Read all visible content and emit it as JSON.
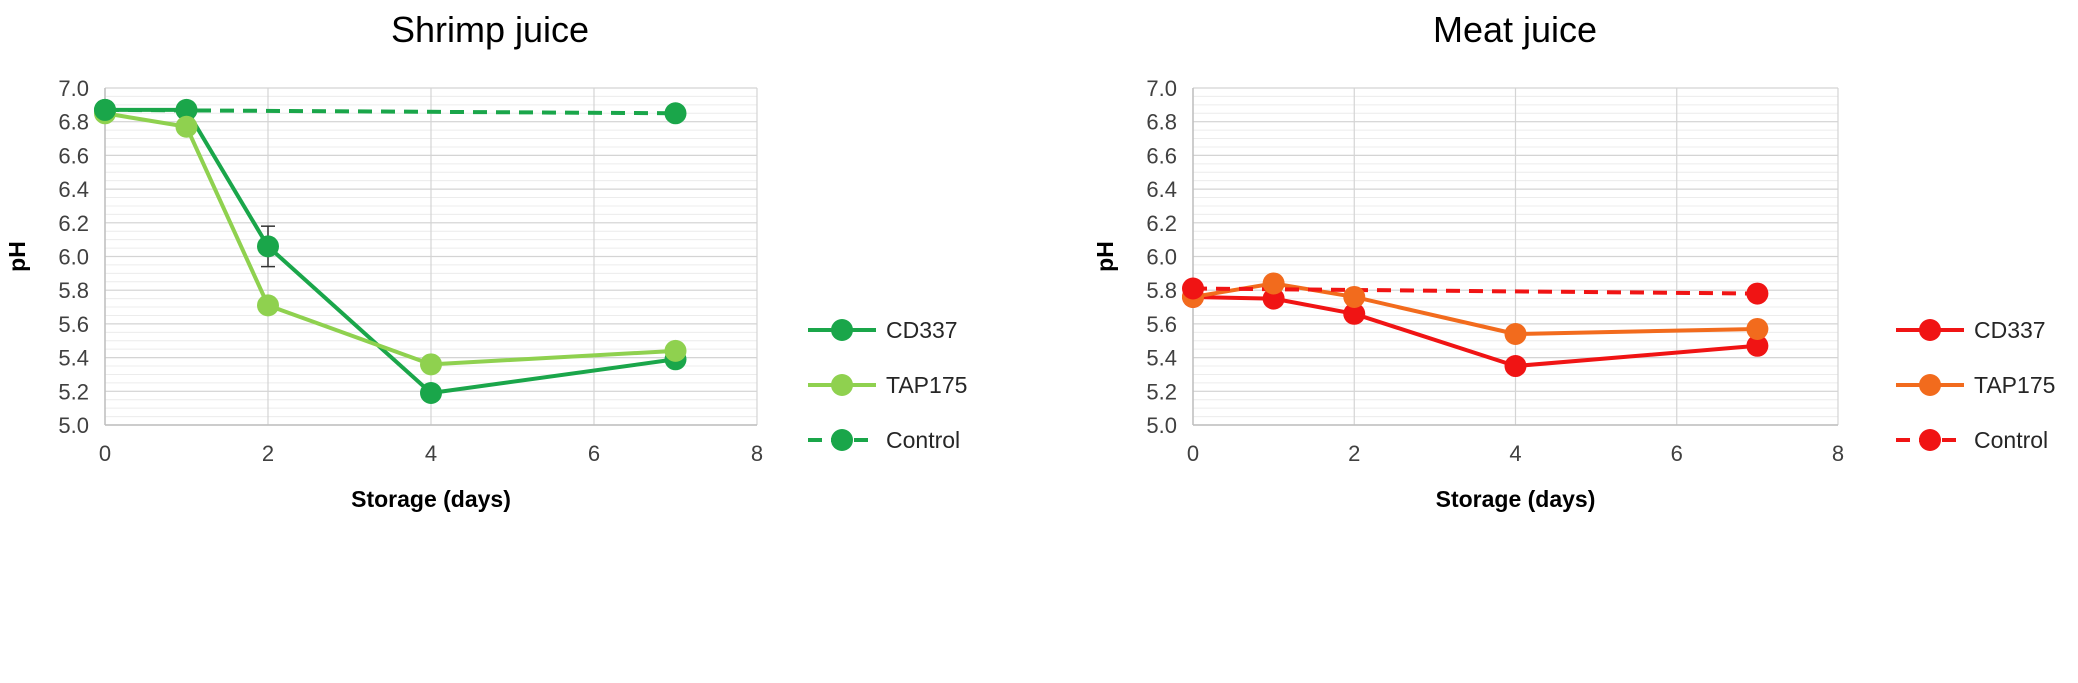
{
  "chart_data": [
    {
      "type": "line",
      "title": "Shrimp juice",
      "xlabel": "Storage (days)",
      "ylabel": "pH",
      "xlim": [
        0,
        8
      ],
      "ylim": [
        5.0,
        7.0
      ],
      "xticks": [
        0,
        2,
        4,
        6,
        8
      ],
      "xtick_labels": [
        "0",
        "2",
        "4",
        "6",
        "8"
      ],
      "yticks": [
        5.0,
        5.2,
        5.4,
        5.6,
        5.8,
        6.0,
        6.2,
        6.4,
        6.6,
        6.8,
        7.0
      ],
      "ytick_labels": [
        "5.0",
        "5.2",
        "5.4",
        "5.6",
        "5.8",
        "6.0",
        "6.2",
        "6.4",
        "6.6",
        "6.8",
        "7.0"
      ],
      "grid": true,
      "legend_position": "right",
      "series": [
        {
          "name": "CD337",
          "color": "#1aa64a",
          "dashed": false,
          "x": [
            0,
            1,
            2,
            4,
            7
          ],
          "y": [
            6.87,
            6.87,
            6.06,
            5.19,
            5.39
          ],
          "err": [
            0,
            0,
            0.12,
            0,
            0.04
          ]
        },
        {
          "name": "TAP175",
          "color": "#8fd14f",
          "dashed": false,
          "x": [
            0,
            1,
            2,
            4,
            7
          ],
          "y": [
            6.85,
            6.77,
            5.71,
            5.36,
            5.44
          ],
          "err": [
            0,
            0,
            0,
            0,
            0
          ]
        },
        {
          "name": "Control",
          "color": "#1aa64a",
          "dashed": true,
          "x": [
            0,
            7
          ],
          "y": [
            6.87,
            6.85
          ],
          "err": [
            0,
            0
          ]
        }
      ]
    },
    {
      "type": "line",
      "title": "Meat juice",
      "xlabel": "Storage (days)",
      "ylabel": "pH",
      "xlim": [
        0,
        8
      ],
      "ylim": [
        5.0,
        7.0
      ],
      "xticks": [
        0,
        2,
        4,
        6,
        8
      ],
      "xtick_labels": [
        "0",
        "2",
        "4",
        "6",
        "8"
      ],
      "yticks": [
        5.0,
        5.2,
        5.4,
        5.6,
        5.8,
        6.0,
        6.2,
        6.4,
        6.6,
        6.8,
        7.0
      ],
      "ytick_labels": [
        "5.0",
        "5.2",
        "5.4",
        "5.6",
        "5.8",
        "6.0",
        "6.2",
        "6.4",
        "6.6",
        "6.8",
        "7.0"
      ],
      "grid": true,
      "legend_position": "right",
      "series": [
        {
          "name": "CD337",
          "color": "#f01414",
          "dashed": false,
          "x": [
            0,
            1,
            2,
            4,
            7
          ],
          "y": [
            5.76,
            5.75,
            5.66,
            5.35,
            5.47
          ],
          "err": [
            0,
            0,
            0,
            0,
            0
          ]
        },
        {
          "name": "TAP175",
          "color": "#f26b1d",
          "dashed": false,
          "x": [
            0,
            1,
            2,
            4,
            7
          ],
          "y": [
            5.76,
            5.84,
            5.76,
            5.54,
            5.57
          ],
          "err": [
            0,
            0,
            0,
            0.03,
            0
          ]
        },
        {
          "name": "Control",
          "color": "#f01414",
          "dashed": true,
          "x": [
            0,
            7
          ],
          "y": [
            5.81,
            5.78
          ],
          "err": [
            0,
            0
          ]
        }
      ]
    }
  ]
}
